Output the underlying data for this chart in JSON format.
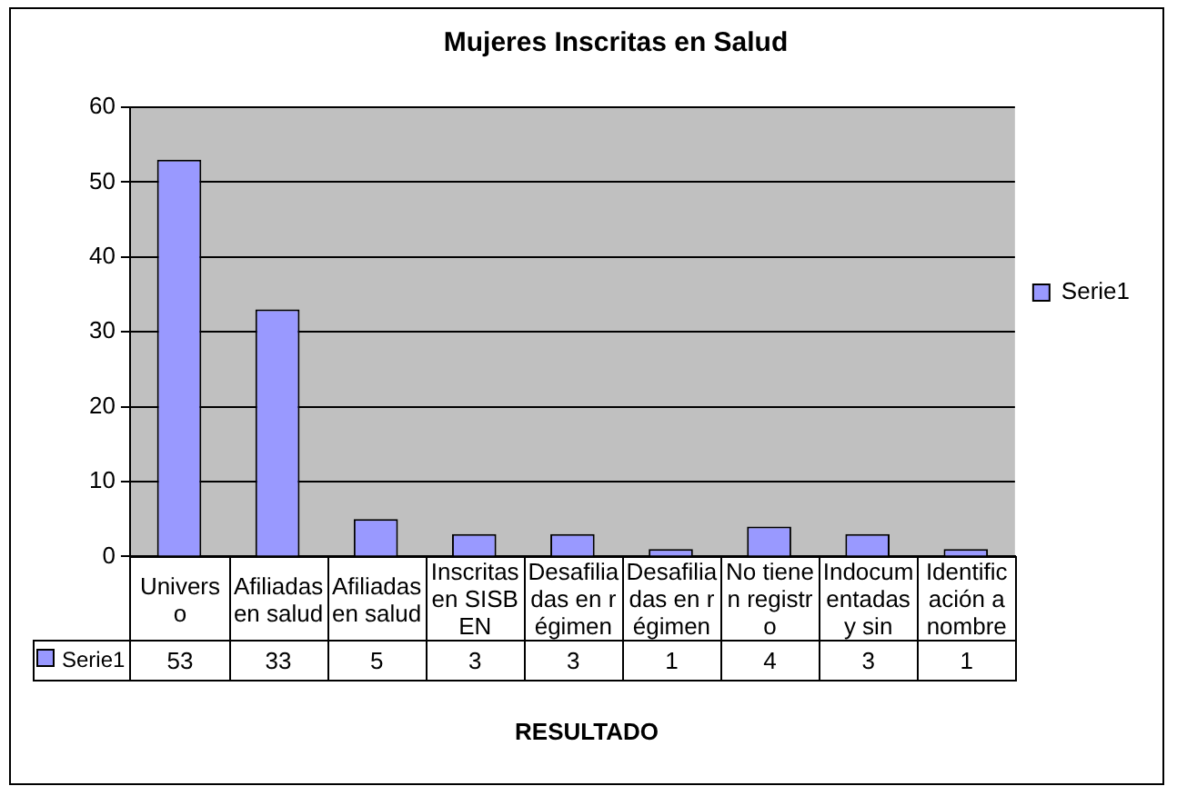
{
  "chart_data": {
    "type": "bar",
    "title": "Mujeres Inscritas en Salud",
    "xlabel": "RESULTADO",
    "categories": [
      "Universo",
      "Afiliadas en salud",
      "Afiliadas en salud",
      "Inscritas en SISBEN",
      "Desafiliadas en régimen",
      "Desafiliadas en régimen",
      "No tienen registro",
      "Indocumentadas y sin",
      "Identificación a nombre"
    ],
    "series": [
      {
        "name": "Serie1",
        "color": "#9999ff",
        "values": [
          53,
          33,
          5,
          3,
          3,
          1,
          4,
          3,
          1
        ]
      }
    ],
    "ylim": [
      0,
      60
    ],
    "yticks": [
      0,
      10,
      20,
      30,
      40,
      50,
      60
    ],
    "grid": "y",
    "legend": "right",
    "data_labels": true
  }
}
